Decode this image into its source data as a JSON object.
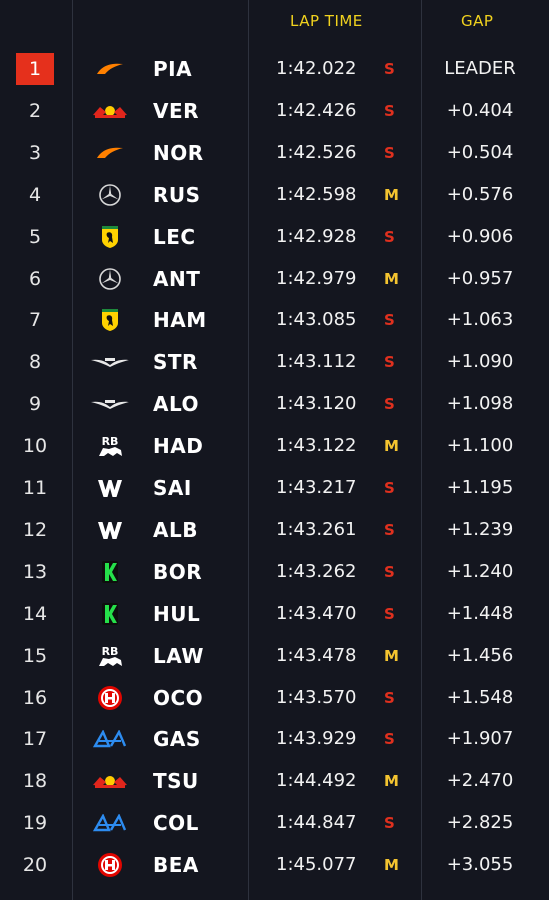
{
  "headers": {
    "lap_time": "LAP TIME",
    "gap": "GAP"
  },
  "colors": {
    "accent": "#f1d21e",
    "leader_bg": "#e5301c",
    "soft": "#e0301e",
    "medium": "#f4c430",
    "background": "#14161f"
  },
  "rows": [
    {
      "pos": "1",
      "team": "mclaren",
      "logo": "mclaren-logo-icon",
      "driver": "PIA",
      "time": "1:42.022",
      "tyre": "S",
      "gap": "LEADER"
    },
    {
      "pos": "2",
      "team": "redbull",
      "logo": "red-bull-logo-icon",
      "driver": "VER",
      "time": "1:42.426",
      "tyre": "S",
      "gap": "+0.404"
    },
    {
      "pos": "3",
      "team": "mclaren",
      "logo": "mclaren-logo-icon",
      "driver": "NOR",
      "time": "1:42.526",
      "tyre": "S",
      "gap": "+0.504"
    },
    {
      "pos": "4",
      "team": "mercedes",
      "logo": "mercedes-logo-icon",
      "driver": "RUS",
      "time": "1:42.598",
      "tyre": "M",
      "gap": "+0.576"
    },
    {
      "pos": "5",
      "team": "ferrari",
      "logo": "ferrari-logo-icon",
      "driver": "LEC",
      "time": "1:42.928",
      "tyre": "S",
      "gap": "+0.906"
    },
    {
      "pos": "6",
      "team": "mercedes",
      "logo": "mercedes-logo-icon",
      "driver": "ANT",
      "time": "1:42.979",
      "tyre": "M",
      "gap": "+0.957"
    },
    {
      "pos": "7",
      "team": "ferrari",
      "logo": "ferrari-logo-icon",
      "driver": "HAM",
      "time": "1:43.085",
      "tyre": "S",
      "gap": "+1.063"
    },
    {
      "pos": "8",
      "team": "astonmartin",
      "logo": "aston-martin-logo-icon",
      "driver": "STR",
      "time": "1:43.112",
      "tyre": "S",
      "gap": "+1.090"
    },
    {
      "pos": "9",
      "team": "astonmartin",
      "logo": "aston-martin-logo-icon",
      "driver": "ALO",
      "time": "1:43.120",
      "tyre": "S",
      "gap": "+1.098"
    },
    {
      "pos": "10",
      "team": "rb",
      "logo": "racing-bulls-logo-icon",
      "driver": "HAD",
      "time": "1:43.122",
      "tyre": "M",
      "gap": "+1.100"
    },
    {
      "pos": "11",
      "team": "williams",
      "logo": "williams-logo-icon",
      "driver": "SAI",
      "time": "1:43.217",
      "tyre": "S",
      "gap": "+1.195"
    },
    {
      "pos": "12",
      "team": "williams",
      "logo": "williams-logo-icon",
      "driver": "ALB",
      "time": "1:43.261",
      "tyre": "S",
      "gap": "+1.239"
    },
    {
      "pos": "13",
      "team": "sauber",
      "logo": "sauber-logo-icon",
      "driver": "BOR",
      "time": "1:43.262",
      "tyre": "S",
      "gap": "+1.240"
    },
    {
      "pos": "14",
      "team": "sauber",
      "logo": "sauber-logo-icon",
      "driver": "HUL",
      "time": "1:43.470",
      "tyre": "S",
      "gap": "+1.448"
    },
    {
      "pos": "15",
      "team": "rb",
      "logo": "racing-bulls-logo-icon",
      "driver": "LAW",
      "time": "1:43.478",
      "tyre": "M",
      "gap": "+1.456"
    },
    {
      "pos": "16",
      "team": "haas",
      "logo": "haas-logo-icon",
      "driver": "OCO",
      "time": "1:43.570",
      "tyre": "S",
      "gap": "+1.548"
    },
    {
      "pos": "17",
      "team": "alpine",
      "logo": "alpine-logo-icon",
      "driver": "GAS",
      "time": "1:43.929",
      "tyre": "S",
      "gap": "+1.907"
    },
    {
      "pos": "18",
      "team": "redbull",
      "logo": "red-bull-logo-icon",
      "driver": "TSU",
      "time": "1:44.492",
      "tyre": "M",
      "gap": "+2.470"
    },
    {
      "pos": "19",
      "team": "alpine",
      "logo": "alpine-logo-icon",
      "driver": "COL",
      "time": "1:44.847",
      "tyre": "S",
      "gap": "+2.825"
    },
    {
      "pos": "20",
      "team": "haas",
      "logo": "haas-logo-icon",
      "driver": "BEA",
      "time": "1:45.077",
      "tyre": "M",
      "gap": "+3.055"
    }
  ]
}
